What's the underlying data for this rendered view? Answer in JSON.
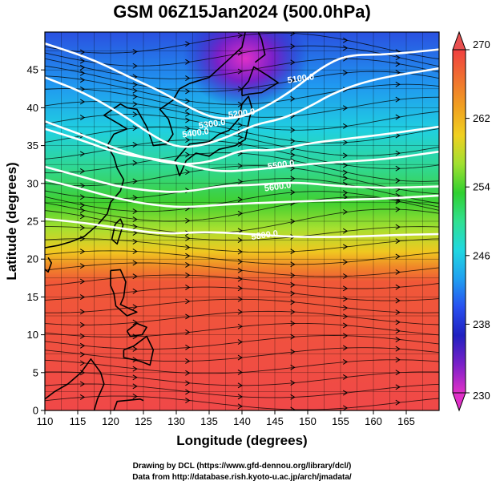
{
  "title": "GSM 06Z15Jan2024 (500.0hPa)",
  "xlabel": "Longitude (degrees)",
  "ylabel": "Latitude  (degrees)",
  "credits": [
    "Drawing by DCL (https://www.gfd-dennou.org/library/dcl/)",
    "Data from http://database.rish.kyoto-u.ac.jp/arch/jmadata/"
  ],
  "colors": {
    "coastline": "#000000",
    "streamline": "#000000",
    "contour": "#ffffff",
    "colorbar_stops": [
      "#e030c8",
      "#7a20c8",
      "#2020c0",
      "#2850f0",
      "#20a0f0",
      "#20d8e0",
      "#30e090",
      "#30d030",
      "#a0e030",
      "#f0d020",
      "#f0a020",
      "#f07030",
      "#f04040"
    ]
  },
  "chart_data": {
    "type": "heatmap",
    "xlim": [
      110,
      170
    ],
    "ylim": [
      0,
      50
    ],
    "x_ticks": [
      110,
      115,
      120,
      125,
      130,
      135,
      140,
      145,
      150,
      155,
      160,
      165
    ],
    "y_ticks": [
      0,
      5,
      10,
      15,
      20,
      25,
      30,
      35,
      40,
      45
    ],
    "colorbar": {
      "min": 230,
      "max": 270,
      "ticks": [
        230,
        238,
        246,
        254,
        262,
        270
      ]
    },
    "contours": [
      {
        "label": "5100.0",
        "points": [
          [
            110,
            48.5
          ],
          [
            117,
            46.5
          ],
          [
            123,
            44
          ],
          [
            128,
            42
          ],
          [
            132,
            40
          ],
          [
            136,
            38.5
          ],
          [
            140,
            38.7
          ],
          [
            144,
            40.3
          ],
          [
            148,
            42.5
          ],
          [
            152,
            45.3
          ],
          [
            156,
            47
          ],
          [
            162,
            47
          ],
          [
            170,
            47.7
          ]
        ],
        "label_at": [
          149,
          43.5
        ]
      },
      {
        "label": "5200.0",
        "points": [
          [
            110,
            44
          ],
          [
            116,
            42
          ],
          [
            122,
            39
          ],
          [
            126,
            36.5
          ],
          [
            130,
            34.7
          ],
          [
            134,
            35
          ],
          [
            138,
            36.2
          ],
          [
            142,
            37.8
          ],
          [
            146,
            38.5
          ],
          [
            150,
            40
          ],
          [
            154,
            42
          ],
          [
            160,
            43.8
          ],
          [
            170,
            45.2
          ]
        ],
        "label_at": [
          140,
          38.9
        ]
      },
      {
        "label": "5300.0",
        "points": [
          [
            110,
            38.2
          ],
          [
            116,
            36.3
          ],
          [
            121,
            34.5
          ],
          [
            126,
            33.2
          ],
          [
            131,
            32.4
          ],
          [
            136,
            33
          ],
          [
            140,
            34.5
          ],
          [
            145,
            34.3
          ],
          [
            150,
            35.3
          ],
          [
            155,
            35.8
          ],
          [
            162,
            36.5
          ],
          [
            170,
            37.5
          ]
        ],
        "label_at": [
          135.5,
          37.5
        ]
      },
      {
        "label": "5400.0",
        "points": [
          [
            110,
            37.2
          ],
          [
            116,
            35.6
          ],
          [
            121,
            34
          ],
          [
            126,
            33.3
          ],
          [
            130,
            32.8
          ],
          [
            136,
            31.5
          ],
          [
            142,
            31.8
          ],
          [
            148,
            32.4
          ],
          [
            154,
            32.8
          ],
          [
            162,
            33.2
          ],
          [
            170,
            34.2
          ]
        ],
        "label_at": [
          133,
          36.3
        ]
      },
      {
        "label": "5500.0",
        "points": [
          [
            110,
            32.2
          ],
          [
            116,
            30.8
          ],
          [
            121,
            29.6
          ],
          [
            126,
            29
          ],
          [
            131,
            28.8
          ],
          [
            137,
            29.7
          ],
          [
            142,
            29.8
          ],
          [
            148,
            30.2
          ],
          [
            155,
            29.6
          ],
          [
            162,
            29.4
          ],
          [
            170,
            29.6
          ]
        ],
        "label_at": [
          146,
          32.1
        ]
      },
      {
        "label": "5600.0",
        "points": [
          [
            110,
            30.5
          ],
          [
            116,
            29.2
          ],
          [
            121,
            28
          ],
          [
            126,
            27.2
          ],
          [
            131,
            26.8
          ],
          [
            137,
            27.2
          ],
          [
            142,
            27.4
          ],
          [
            148,
            27.6
          ],
          [
            155,
            27.8
          ],
          [
            162,
            28
          ],
          [
            170,
            28.4
          ]
        ],
        "label_at": [
          145.5,
          29.2
        ]
      },
      {
        "label": "5800.0",
        "points": [
          [
            110,
            25.3
          ],
          [
            116,
            24.8
          ],
          [
            122,
            24
          ],
          [
            128,
            23.3
          ],
          [
            134,
            23.6
          ],
          [
            140,
            23.4
          ],
          [
            146,
            23
          ],
          [
            152,
            22.9
          ],
          [
            158,
            23
          ],
          [
            164,
            23.2
          ],
          [
            170,
            23.3
          ]
        ],
        "label_at": [
          143.5,
          22.8
        ]
      }
    ]
  }
}
